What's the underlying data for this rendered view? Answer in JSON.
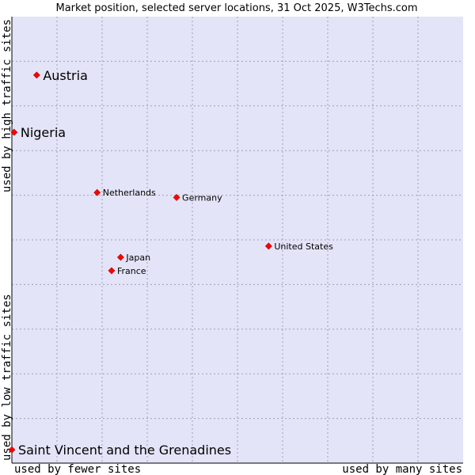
{
  "colors": {
    "plot_bg": "#e4e4f8",
    "grid": "#a0a0b4",
    "axis": "#000000",
    "marker": "#ff0000"
  },
  "chart_data": {
    "type": "scatter",
    "title": "Market position, selected server locations, 31 Oct 2025, W3Techs.com",
    "xlabel_left": "used by fewer sites",
    "xlabel_right": "used by many sites",
    "ylabel_bottom": "used by low traffic sites",
    "ylabel_top": "used by high traffic sites",
    "xlim": [
      0,
      100
    ],
    "ylim": [
      0,
      100
    ],
    "grid": true,
    "points": [
      {
        "label": "Austria",
        "x": 5.5,
        "y": 86.9,
        "emphasis": true
      },
      {
        "label": "Nigeria",
        "x": 0.5,
        "y": 74.1,
        "emphasis": true
      },
      {
        "label": "Netherlands",
        "x": 18.9,
        "y": 60.6,
        "emphasis": false
      },
      {
        "label": "Germany",
        "x": 36.5,
        "y": 59.5,
        "emphasis": false
      },
      {
        "label": "United States",
        "x": 56.9,
        "y": 48.6,
        "emphasis": false
      },
      {
        "label": "Japan",
        "x": 24.1,
        "y": 46.1,
        "emphasis": false
      },
      {
        "label": "France",
        "x": 22.1,
        "y": 43.1,
        "emphasis": false
      },
      {
        "label": "Saint Vincent and the Grenadines",
        "x": 0.0,
        "y": 3.0,
        "emphasis": true
      }
    ]
  }
}
